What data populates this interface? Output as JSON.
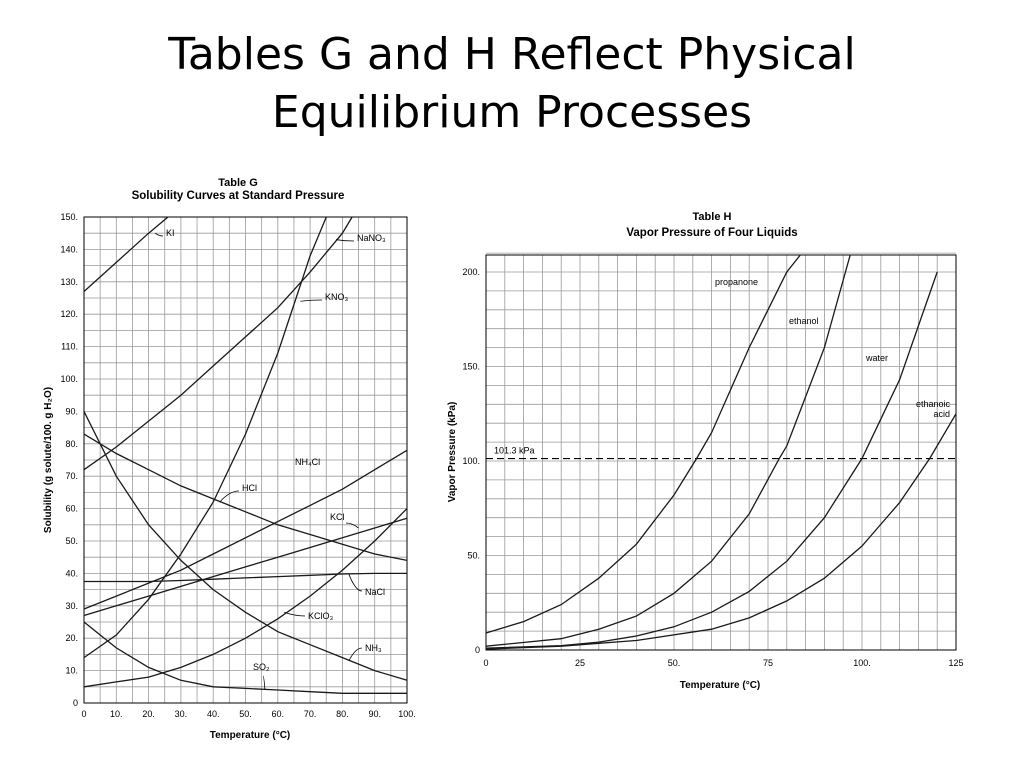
{
  "slide": {
    "title_line1": "Tables G and H Reflect Physical",
    "title_line2": "Equilibrium Processes"
  },
  "chart_data": [
    {
      "type": "line",
      "caption_name": "Table G",
      "title": "Solubility Curves at Standard Pressure",
      "xlabel": "Temperature (°C)",
      "ylabel": "Solubility (g solute/100. g H₂O)",
      "xlim": [
        0,
        100
      ],
      "ylim": [
        0,
        150
      ],
      "xticks": [
        "0",
        "10.",
        "20.",
        "30.",
        "40.",
        "50.",
        "60.",
        "70.",
        "80.",
        "90.",
        "100."
      ],
      "yticks": [
        "0",
        "10.",
        "20.",
        "30.",
        "40.",
        "50.",
        "60.",
        "70.",
        "80.",
        "90.",
        "100.",
        "110.",
        "120.",
        "130.",
        "140.",
        "150."
      ],
      "grid": true,
      "series": [
        {
          "name": "KI",
          "x": [
            0,
            10,
            20,
            26
          ],
          "y": [
            127,
            136,
            145,
            150
          ]
        },
        {
          "name": "NaNO₃",
          "x": [
            0,
            10,
            20,
            30,
            40,
            50,
            60,
            70,
            80,
            83
          ],
          "y": [
            72,
            79,
            87,
            95,
            104,
            113,
            122,
            133,
            145,
            150
          ]
        },
        {
          "name": "KNO₃",
          "x": [
            0,
            10,
            20,
            30,
            40,
            50,
            60,
            70,
            75
          ],
          "y": [
            14,
            21,
            32,
            46,
            62,
            83,
            108,
            138,
            150
          ]
        },
        {
          "name": "NH₄Cl",
          "x": [
            0,
            10,
            20,
            30,
            40,
            50,
            60,
            70,
            80,
            90,
            100
          ],
          "y": [
            29,
            33,
            37,
            41,
            46,
            51,
            56,
            61,
            66,
            72,
            78
          ]
        },
        {
          "name": "HCl",
          "x": [
            0,
            10,
            20,
            30,
            40,
            50,
            60,
            70,
            80,
            90,
            100
          ],
          "y": [
            83,
            77,
            72,
            67,
            63,
            59,
            55,
            52,
            49,
            46,
            44
          ]
        },
        {
          "name": "KCl",
          "x": [
            0,
            10,
            20,
            30,
            40,
            50,
            60,
            70,
            80,
            90,
            100
          ],
          "y": [
            27,
            30,
            33,
            36,
            39,
            42,
            45,
            48,
            51,
            54,
            57
          ]
        },
        {
          "name": "NaCl",
          "x": [
            0,
            10,
            20,
            30,
            40,
            50,
            60,
            70,
            80,
            90,
            100
          ],
          "y": [
            37.5,
            37.5,
            37.5,
            37.8,
            38.2,
            38.6,
            39,
            39.4,
            39.8,
            40,
            40
          ]
        },
        {
          "name": "KClO₃",
          "x": [
            0,
            10,
            20,
            30,
            40,
            50,
            60,
            70,
            80,
            90,
            100
          ],
          "y": [
            5,
            6.5,
            8,
            11,
            15,
            20,
            26,
            33,
            41,
            50,
            60
          ]
        },
        {
          "name": "NH₃",
          "x": [
            0,
            10,
            20,
            30,
            40,
            50,
            60,
            70,
            80,
            90,
            100
          ],
          "y": [
            90,
            70,
            55,
            44,
            35,
            28,
            22,
            18,
            14,
            10,
            7
          ]
        },
        {
          "name": "SO₂",
          "x": [
            0,
            10,
            20,
            30,
            40,
            50,
            60,
            70,
            80,
            90,
            100
          ],
          "y": [
            25,
            17,
            11,
            7,
            5,
            4.5,
            4,
            3.5,
            3,
            3,
            3
          ]
        }
      ]
    },
    {
      "type": "line",
      "caption_name": "Table H",
      "title": "Vapor Pressure of Four Liquids",
      "xlabel": "Temperature (°C)",
      "ylabel": "Vapor Pressure (kPa)",
      "xlim": [
        0,
        125
      ],
      "ylim": [
        0,
        200
      ],
      "xticks": [
        "0",
        "25",
        "50.",
        "75",
        "100.",
        "125"
      ],
      "yticks": [
        "0",
        "50.",
        "100.",
        "150.",
        "200."
      ],
      "grid": true,
      "reference_line": {
        "label": "101.3 kPa",
        "y": 101.3,
        "style": "dashed"
      },
      "series": [
        {
          "name": "propanone",
          "x": [
            0,
            10,
            20,
            30,
            40,
            50,
            56,
            60,
            70,
            80,
            84
          ],
          "y": [
            9,
            15,
            24,
            38,
            56,
            82,
            101.3,
            115,
            160,
            200,
            210
          ]
        },
        {
          "name": "ethanol",
          "x": [
            0,
            20,
            30,
            40,
            50,
            60,
            70,
            78,
            80,
            90,
            97
          ],
          "y": [
            2,
            6,
            11,
            18,
            30,
            47,
            72,
            101.3,
            108,
            160,
            210
          ]
        },
        {
          "name": "water",
          "x": [
            0,
            20,
            30,
            40,
            50,
            60,
            70,
            80,
            90,
            100,
            110,
            120
          ],
          "y": [
            1,
            2.3,
            4.2,
            7.4,
            12.3,
            20,
            31,
            47,
            70,
            101.3,
            143,
            200
          ]
        },
        {
          "name": "ethanoic acid",
          "x": [
            0,
            20,
            40,
            60,
            70,
            80,
            90,
            100,
            110,
            118,
            125
          ],
          "y": [
            0.5,
            2,
            5,
            11,
            17,
            26,
            38,
            55,
            78,
            101.3,
            125
          ]
        }
      ]
    }
  ]
}
